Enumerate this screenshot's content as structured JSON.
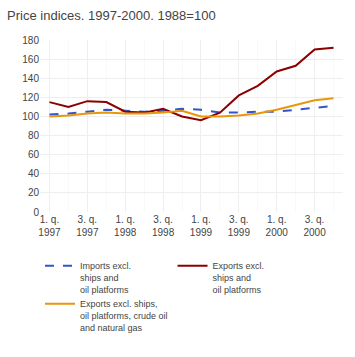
{
  "chart_data": {
    "type": "line",
    "title": "Price indices. 1997-2000. 1988=100",
    "categories": [
      "1. q.\n1997",
      null,
      "3. q.\n1997",
      null,
      "1. q.\n1998",
      null,
      "3. q.\n1998",
      null,
      "1. q.\n1999",
      null,
      "3. q.\n1999",
      null,
      "1. q.\n2000",
      null,
      "3. q.\n2000",
      null
    ],
    "series": [
      {
        "name": "Imports excl.\nships and\noil platforms",
        "color": "#3355cc",
        "line_style": "dashed",
        "values": [
          102,
          103,
          105,
          107,
          106,
          105,
          106,
          108,
          107,
          104,
          104,
          105,
          105,
          107,
          109,
          111
        ]
      },
      {
        "name": "Exports excl.\nships and\noil platforms",
        "color": "#8b0000",
        "line_style": "solid",
        "values": [
          115,
          110,
          116,
          115,
          105,
          104,
          108,
          100,
          96,
          104,
          122,
          132,
          147,
          153,
          170,
          172
        ]
      },
      {
        "name": "Exports excl. ships,\noil platforms, crude oil\nand natural gas",
        "color": "#e8960a",
        "line_style": "solid",
        "values": [
          100,
          101,
          103,
          104,
          103,
          103,
          104,
          106,
          100,
          100,
          101,
          103,
          107,
          112,
          117,
          119
        ]
      }
    ],
    "ylim": [
      0,
      180
    ],
    "yticks": [
      0,
      20,
      40,
      60,
      80,
      100,
      120,
      140,
      160,
      180
    ],
    "grid": true,
    "legend": "bottom"
  }
}
